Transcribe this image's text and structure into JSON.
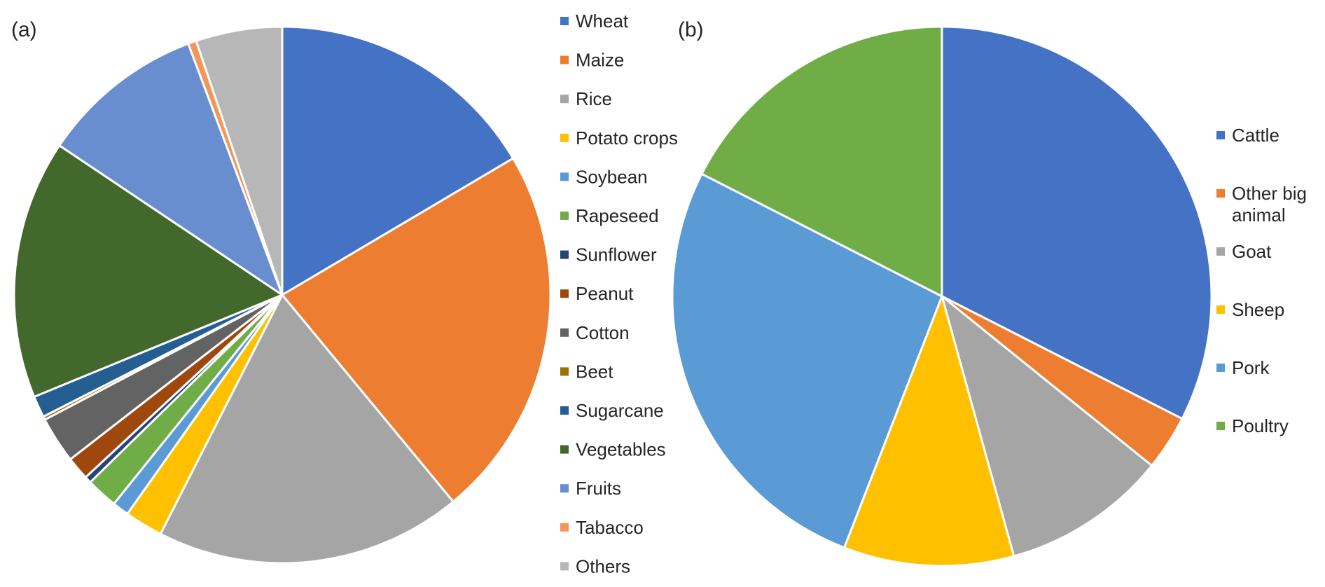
{
  "chart_data": [
    {
      "type": "pie",
      "panel_label": "(a)",
      "start_angle_deg": 0,
      "direction": "clockwise",
      "legend_placement": "right",
      "slices": [
        {
          "label": "Wheat",
          "value": 16.5,
          "color": "#4472C4"
        },
        {
          "label": "Maize",
          "value": 22.5,
          "color": "#ED7D31"
        },
        {
          "label": "Rice",
          "value": 18.5,
          "color": "#A5A5A5"
        },
        {
          "label": "Potato crops",
          "value": 2.3,
          "color": "#FFC000"
        },
        {
          "label": "Soybean",
          "value": 1.0,
          "color": "#5B9BD5"
        },
        {
          "label": "Rapeseed",
          "value": 1.9,
          "color": "#70AD47"
        },
        {
          "label": "Sunflower",
          "value": 0.4,
          "color": "#264478"
        },
        {
          "label": "Peanut",
          "value": 1.4,
          "color": "#9E480E"
        },
        {
          "label": "Cotton",
          "value": 2.8,
          "color": "#636363"
        },
        {
          "label": "Beet",
          "value": 0.2,
          "color": "#997300"
        },
        {
          "label": "Sugarcane",
          "value": 1.3,
          "color": "#255E91"
        },
        {
          "label": "Vegetables",
          "value": 15.6,
          "color": "#43682B"
        },
        {
          "label": "Fruits",
          "value": 9.9,
          "color": "#698ED0"
        },
        {
          "label": "Tabacco",
          "value": 0.5,
          "color": "#F1975A"
        },
        {
          "label": "Others",
          "value": 5.2,
          "color": "#B7B7B7"
        }
      ]
    },
    {
      "type": "pie",
      "panel_label": "(b)",
      "start_angle_deg": 0,
      "direction": "clockwise",
      "legend_placement": "right",
      "slices": [
        {
          "label": "Cattle",
          "value": 32.5,
          "color": "#4472C4"
        },
        {
          "label": "Other big animal",
          "value": 3.3,
          "color": "#ED7D31"
        },
        {
          "label": "Goat",
          "value": 9.9,
          "color": "#A5A5A5"
        },
        {
          "label": "Sheep",
          "value": 10.2,
          "color": "#FFC000"
        },
        {
          "label": "Pork",
          "value": 26.6,
          "color": "#5B9BD5"
        },
        {
          "label": "Poultry",
          "value": 17.5,
          "color": "#70AD47"
        }
      ]
    }
  ]
}
